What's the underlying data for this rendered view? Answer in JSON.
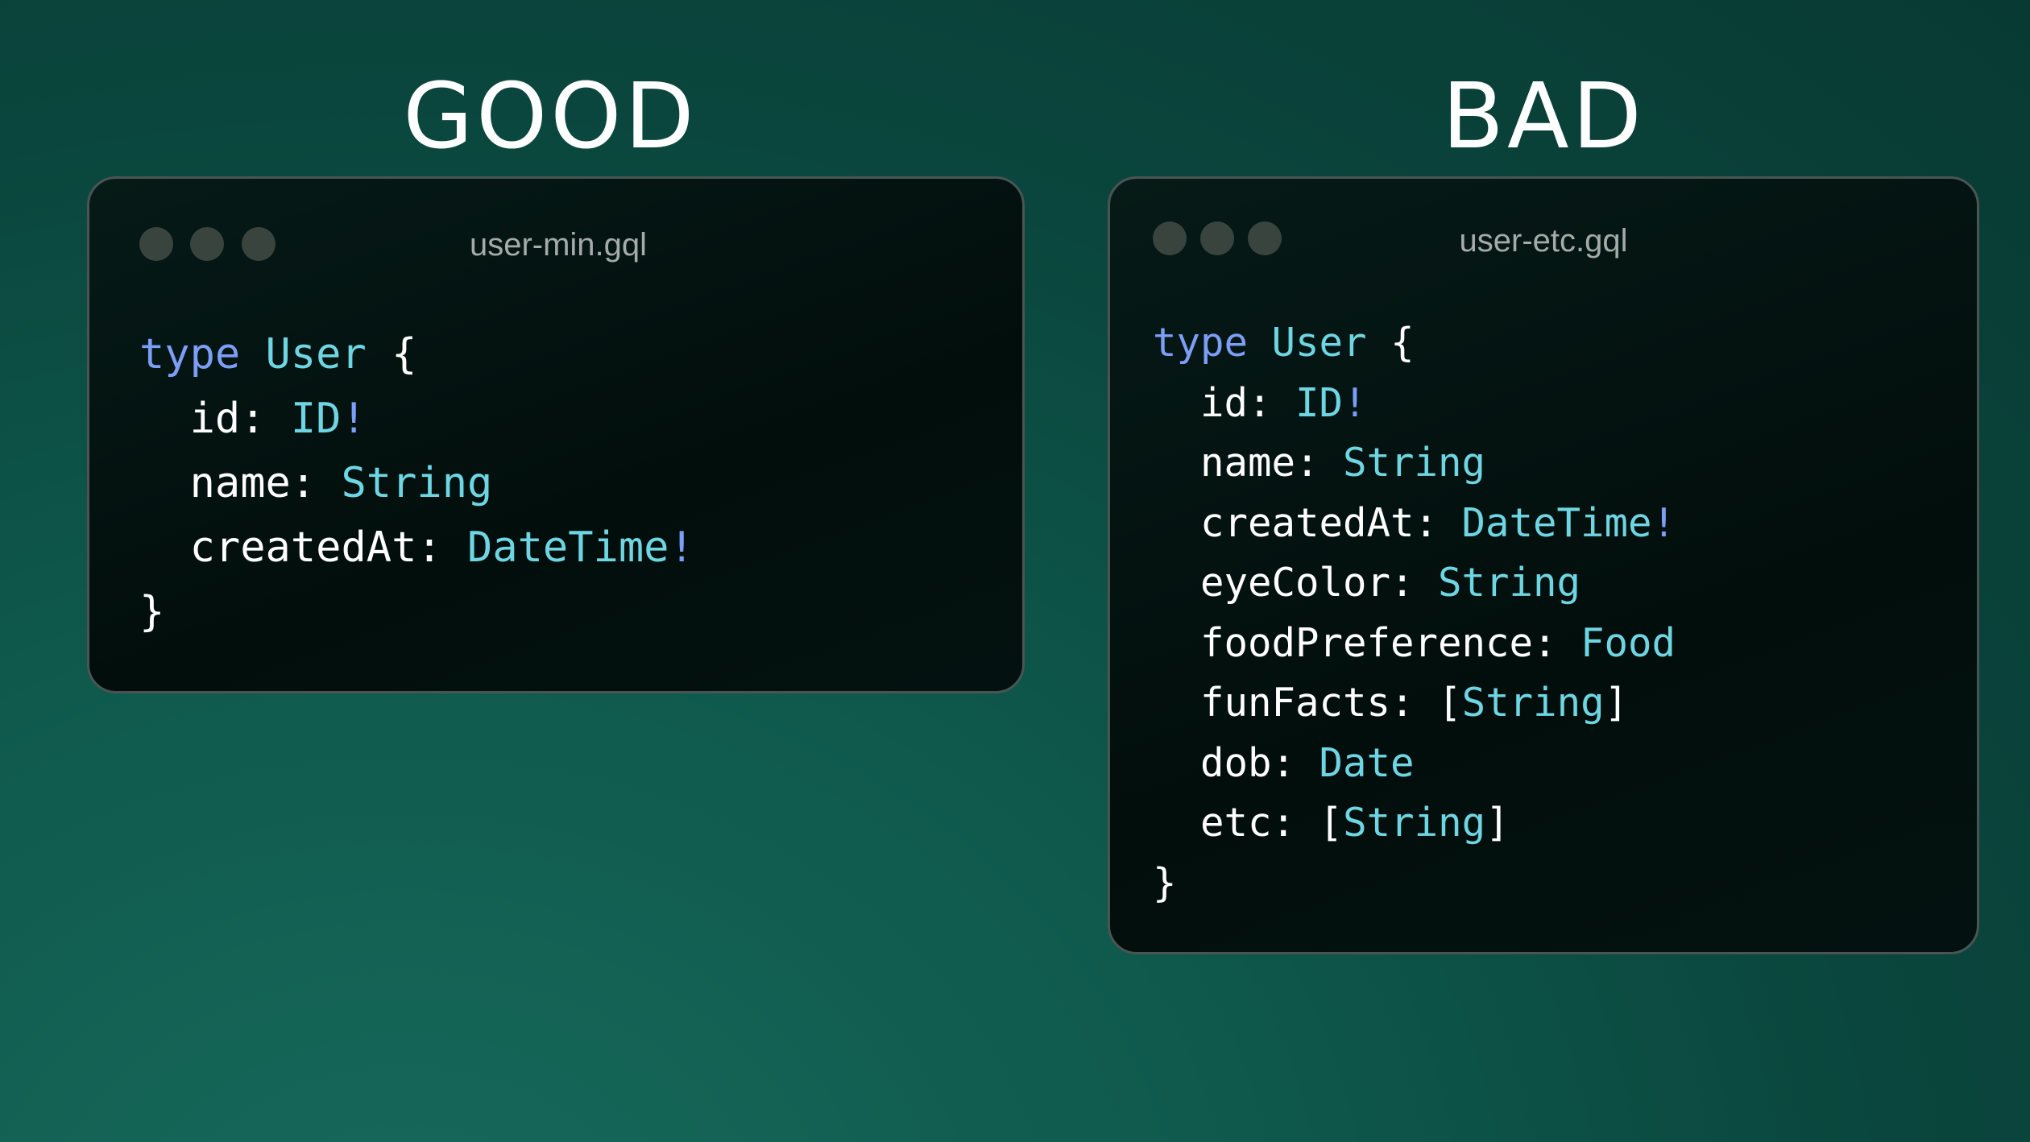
{
  "good": {
    "title": "GOOD",
    "filename": "user-min.gql",
    "code": {
      "keyword": "type",
      "name": "User",
      "open": "{",
      "close": "}",
      "fields": [
        {
          "name": "id",
          "type": "ID",
          "suffix": "!",
          "list": false
        },
        {
          "name": "name",
          "type": "String",
          "suffix": "",
          "list": false
        },
        {
          "name": "createdAt",
          "type": "DateTime",
          "suffix": "!",
          "list": false
        }
      ]
    }
  },
  "bad": {
    "title": "BAD",
    "filename": "user-etc.gql",
    "code": {
      "keyword": "type",
      "name": "User",
      "open": "{",
      "close": "}",
      "fields": [
        {
          "name": "id",
          "type": "ID",
          "suffix": "!",
          "list": false
        },
        {
          "name": "name",
          "type": "String",
          "suffix": "",
          "list": false
        },
        {
          "name": "createdAt",
          "type": "DateTime",
          "suffix": "!",
          "list": false
        },
        {
          "name": "eyeColor",
          "type": "String",
          "suffix": "",
          "list": false
        },
        {
          "name": "foodPreference",
          "type": "Food",
          "suffix": "",
          "list": false
        },
        {
          "name": "funFacts",
          "type": "String",
          "suffix": "",
          "list": true
        },
        {
          "name": "dob",
          "type": "Date",
          "suffix": "",
          "list": false
        },
        {
          "name": "etc",
          "type": "String",
          "suffix": "",
          "list": true
        }
      ]
    }
  },
  "colors": {
    "keyword": "#7c9ef6",
    "type": "#6ed6e2",
    "text": "#ffffff",
    "card_bg": "#020e0c"
  }
}
